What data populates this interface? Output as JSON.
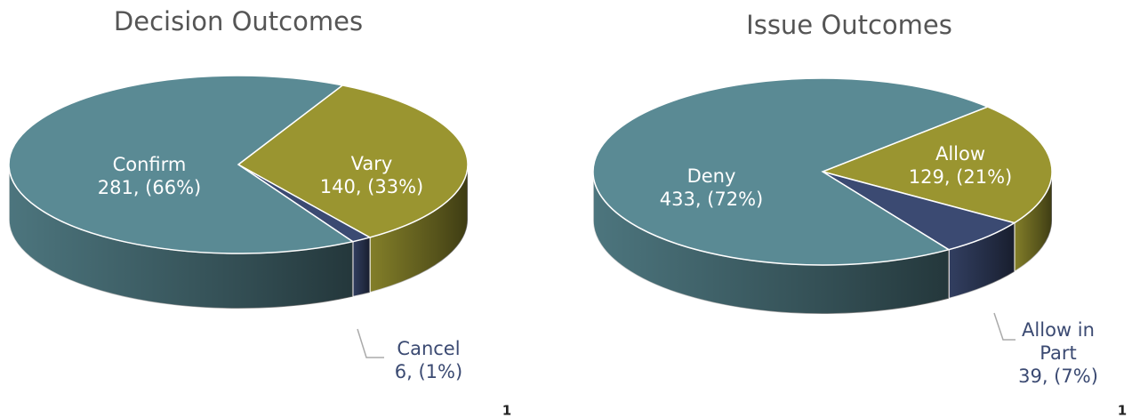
{
  "chart_data": [
    {
      "type": "pie3d",
      "title": "Decision Outcomes",
      "categories": [
        "Vary",
        "Cancel",
        "Confirm"
      ],
      "values": [
        140,
        6,
        281
      ],
      "value_labels": [
        "140, (33%)",
        "6, (1%)",
        "281, (66%)"
      ],
      "colors": [
        "#9a9530",
        "#3b4a72",
        "#5a8a94"
      ],
      "note": "1"
    },
    {
      "type": "pie3d",
      "title": "Issue Outcomes",
      "categories": [
        "Allow",
        "Allow in Part",
        "Deny"
      ],
      "values": [
        129,
        39,
        433
      ],
      "value_labels": [
        "129, (21%)",
        "39, (7%)",
        "433, (72%)"
      ],
      "colors": [
        "#9a9530",
        "#3b4a72",
        "#5a8a94"
      ],
      "note": "1"
    }
  ]
}
